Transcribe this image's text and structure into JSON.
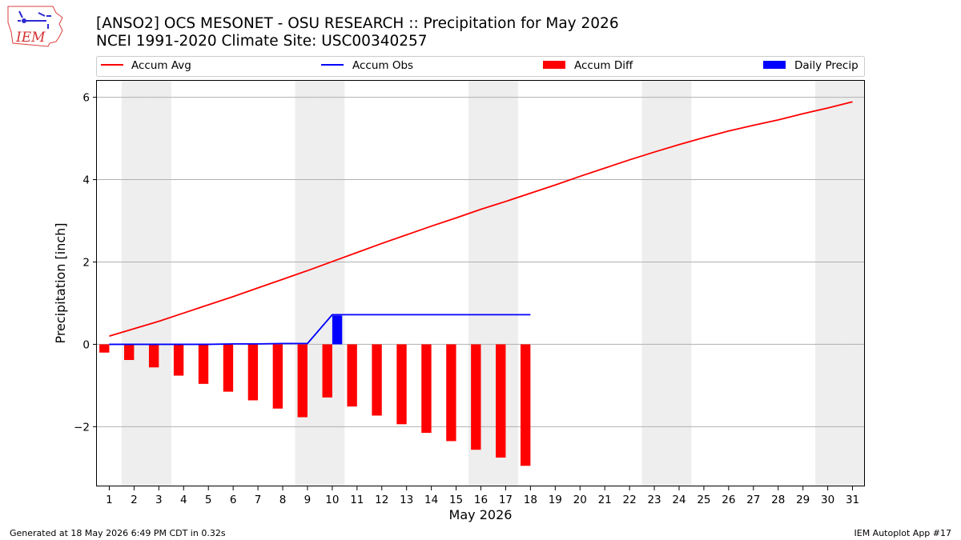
{
  "logo": {
    "text": "IEM"
  },
  "title": {
    "line1": "[ANSO2] OCS MESONET - OSU RESEARCH :: Precipitation for May 2026",
    "line2": "NCEI 1991-2020 Climate Site: USC00340257"
  },
  "footer": {
    "left": "Generated at 18 May 2026 6:49 PM CDT in 0.32s",
    "right": "IEM Autoplot App #17"
  },
  "colors": {
    "avg": "#ff0000",
    "obs": "#0000ff",
    "diff": "#ff0000",
    "daily": "#0000ff",
    "weekend": "#eeeeee",
    "grid": "#b0b0b0"
  },
  "chart_data": {
    "type": "bar",
    "xlabel": "May 2026",
    "ylabel": "Precipitation [inch]",
    "xlim": [
      0.5,
      31.5
    ],
    "ylim": [
      -3.45,
      6.4
    ],
    "yticks": [
      -2,
      0,
      2,
      4,
      6
    ],
    "ytick_labels": [
      "−2",
      "0",
      "2",
      "4",
      "6"
    ],
    "x": [
      1,
      2,
      3,
      4,
      5,
      6,
      7,
      8,
      9,
      10,
      11,
      12,
      13,
      14,
      15,
      16,
      17,
      18,
      19,
      20,
      21,
      22,
      23,
      24,
      25,
      26,
      27,
      28,
      29,
      30,
      31
    ],
    "weekend_days": [
      2,
      3,
      9,
      10,
      16,
      17,
      23,
      24,
      30,
      31
    ],
    "grid": "horizontal",
    "legend_placement": "top, above plot",
    "legend": [
      "Accum Avg",
      "Accum Obs",
      "Accum Diff",
      "Daily Precip"
    ],
    "series": [
      {
        "name": "Accum Avg",
        "kind": "line",
        "x": [
          1,
          2,
          3,
          4,
          5,
          6,
          7,
          8,
          9,
          10,
          11,
          12,
          13,
          14,
          15,
          16,
          17,
          18,
          19,
          20,
          21,
          22,
          23,
          24,
          25,
          26,
          27,
          28,
          29,
          30,
          31
        ],
        "values": [
          0.2,
          0.38,
          0.56,
          0.76,
          0.96,
          1.16,
          1.37,
          1.58,
          1.79,
          2.01,
          2.23,
          2.45,
          2.66,
          2.87,
          3.07,
          3.28,
          3.47,
          3.67,
          3.87,
          4.08,
          4.28,
          4.48,
          4.67,
          4.85,
          5.02,
          5.18,
          5.32,
          5.45,
          5.6,
          5.74,
          5.89
        ]
      },
      {
        "name": "Accum Obs",
        "kind": "line",
        "x": [
          1,
          2,
          3,
          4,
          5,
          6,
          7,
          8,
          9,
          10,
          11,
          12,
          13,
          14,
          15,
          16,
          17,
          18
        ],
        "values": [
          0.0,
          0.0,
          0.0,
          0.0,
          0.0,
          0.01,
          0.01,
          0.02,
          0.02,
          0.72,
          0.72,
          0.72,
          0.72,
          0.72,
          0.72,
          0.72,
          0.72,
          0.72
        ]
      },
      {
        "name": "Accum Diff",
        "kind": "bar",
        "offset": -0.2,
        "x": [
          1,
          2,
          3,
          4,
          5,
          6,
          7,
          8,
          9,
          10,
          11,
          12,
          13,
          14,
          15,
          16,
          17,
          18
        ],
        "values": [
          -0.2,
          -0.38,
          -0.56,
          -0.76,
          -0.96,
          -1.15,
          -1.36,
          -1.56,
          -1.77,
          -1.29,
          -1.51,
          -1.73,
          -1.94,
          -2.15,
          -2.35,
          -2.56,
          -2.75,
          -2.95
        ]
      },
      {
        "name": "Daily Precip",
        "kind": "bar",
        "offset": 0.2,
        "x": [
          10
        ],
        "values": [
          0.7
        ]
      }
    ]
  }
}
